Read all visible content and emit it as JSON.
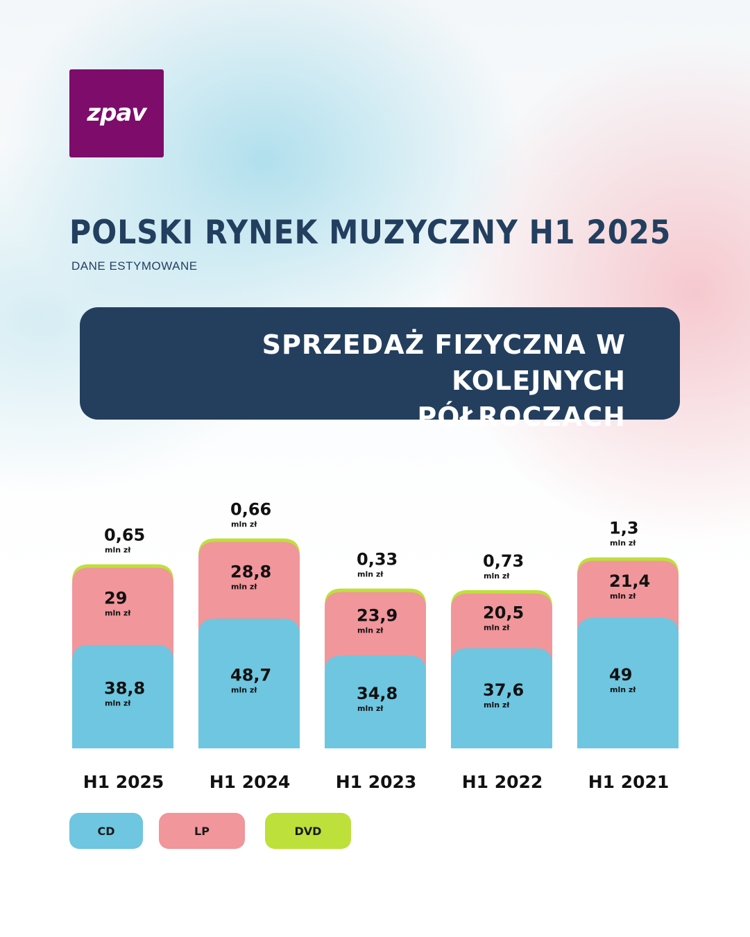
{
  "logo": {
    "text": "zpav",
    "color": "#7d0c6b"
  },
  "title": "POLSKI RYNEK MUZYCZNY H1 2025",
  "subtitle": "DANE ESTYMOWANE",
  "banner": {
    "line1": "SPRZEDAŻ FIZYCZNA W KOLEJNYCH",
    "line2": "PÓŁROCZACH",
    "color": "#243f5e"
  },
  "chart_data": {
    "type": "bar",
    "stacked": true,
    "title": "SPRZEDAŻ FIZYCZNA W KOLEJNYCH PÓŁROCZACH",
    "categories": [
      "H1 2025",
      "H1 2024",
      "H1 2023",
      "H1 2022",
      "H1 2021"
    ],
    "unit": "mln zł",
    "series": [
      {
        "name": "CD",
        "color": "#6ec6e0",
        "values": [
          38.8,
          48.7,
          34.8,
          37.6,
          49
        ],
        "labels": [
          "38,8",
          "48,7",
          "34,8",
          "37,6",
          "49"
        ]
      },
      {
        "name": "LP",
        "color": "#f1969b",
        "values": [
          29,
          28.8,
          23.9,
          20.5,
          21.4
        ],
        "labels": [
          "29",
          "28,8",
          "23,9",
          "20,5",
          "21,4"
        ]
      },
      {
        "name": "DVD",
        "color": "#bde03a",
        "values": [
          0.65,
          0.66,
          0.33,
          0.73,
          1.3
        ],
        "labels": [
          "0,65",
          "0,66",
          "0,33",
          "0,73",
          "1,3"
        ]
      }
    ],
    "legend": "bottom-left",
    "grid": false
  }
}
